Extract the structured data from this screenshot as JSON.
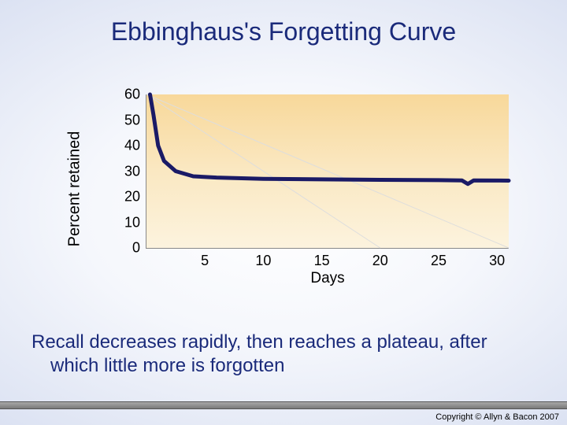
{
  "title": "Ebbinghaus's Forgetting Curve",
  "chart": {
    "type": "line",
    "ylabel": "Percent retained",
    "xlabel": "Days",
    "xlim": [
      0,
      31
    ],
    "ylim": [
      0,
      60
    ],
    "yticks": [
      60,
      50,
      40,
      30,
      20,
      10,
      0
    ],
    "xticks": [
      5,
      10,
      15,
      20,
      25,
      30
    ],
    "plot_bg_top": "#f8d89a",
    "plot_bg_bottom": "#fcf3de",
    "axis_color": "#888888",
    "line_color": "#1a1a66",
    "line_width": 5,
    "diag_color": "#dddddd",
    "diag_width": 1,
    "data_points": [
      {
        "x": 0.3,
        "y": 60
      },
      {
        "x": 0.6,
        "y": 52
      },
      {
        "x": 1.0,
        "y": 40
      },
      {
        "x": 1.5,
        "y": 34
      },
      {
        "x": 2.5,
        "y": 30
      },
      {
        "x": 4,
        "y": 28
      },
      {
        "x": 6,
        "y": 27.5
      },
      {
        "x": 10,
        "y": 27
      },
      {
        "x": 15,
        "y": 26.8
      },
      {
        "x": 20,
        "y": 26.6
      },
      {
        "x": 25,
        "y": 26.5
      },
      {
        "x": 27,
        "y": 26.4
      },
      {
        "x": 27.5,
        "y": 25.0
      },
      {
        "x": 28,
        "y": 26.4
      },
      {
        "x": 31,
        "y": 26.3
      }
    ],
    "diag_lines": [
      {
        "x1": 0,
        "y1": 60,
        "x2": 31,
        "y2": 0
      },
      {
        "x1": 0,
        "y1": 60,
        "x2": 20,
        "y2": 0
      }
    ]
  },
  "caption": "Recall decreases rapidly, then reaches a plateau, after which little more is forgotten",
  "copyright": "Copyright © Allyn & Bacon 2007"
}
